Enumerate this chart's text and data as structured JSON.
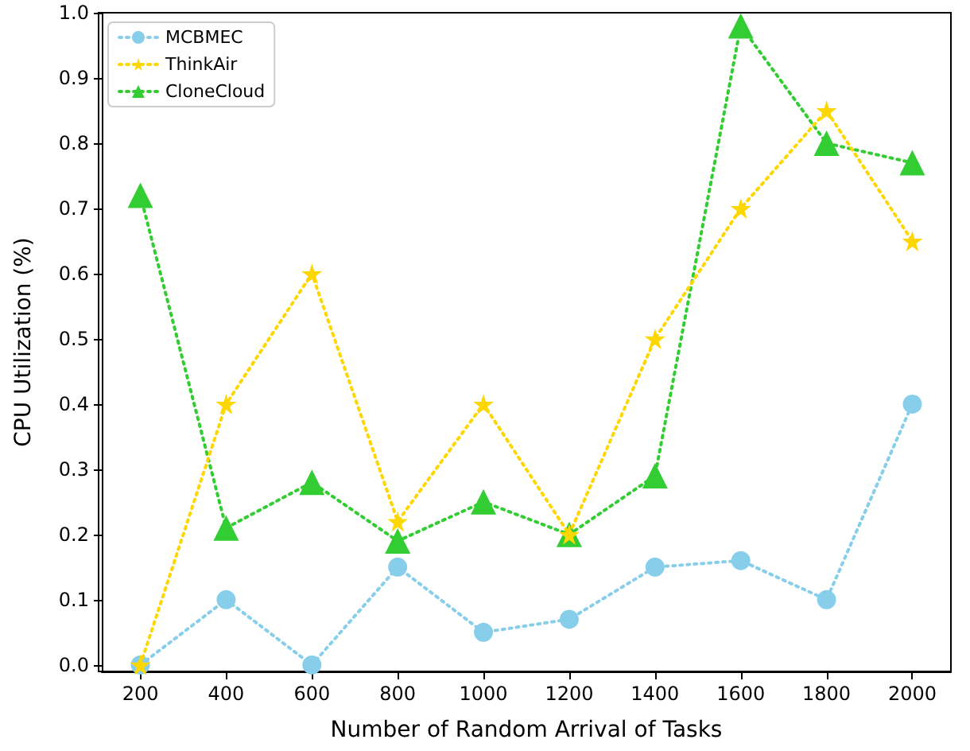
{
  "chart_data": {
    "type": "line",
    "xlabel": "Number of Random Arrival of Tasks",
    "ylabel": "CPU Utilization (%)",
    "x": [
      200,
      400,
      600,
      800,
      1000,
      1200,
      1400,
      1600,
      1800,
      2000
    ],
    "series": [
      {
        "name": "MCBMEC",
        "color": "#87ceeb",
        "marker": "circle",
        "values": [
          0.0,
          0.1,
          0.0,
          0.15,
          0.05,
          0.07,
          0.15,
          0.16,
          0.1,
          0.4
        ]
      },
      {
        "name": "ThinkAir",
        "color": "#ffd700",
        "marker": "star",
        "values": [
          0.0,
          0.4,
          0.6,
          0.22,
          0.4,
          0.2,
          0.5,
          0.7,
          0.85,
          0.65
        ]
      },
      {
        "name": "CloneCloud",
        "color": "#32cd32",
        "marker": "triangle",
        "values": [
          0.72,
          0.21,
          0.28,
          0.19,
          0.25,
          0.2,
          0.29,
          0.98,
          0.8,
          0.77
        ]
      }
    ],
    "xlim": [
      110,
      2090
    ],
    "xticks": [
      200,
      400,
      600,
      800,
      1000,
      1200,
      1400,
      1600,
      1800,
      2000
    ],
    "ylim": [
      -0.01,
      1.0
    ],
    "yticks": [
      {
        "value": 0,
        "label": "0.0"
      },
      0.1,
      0.2,
      0.3,
      0.4,
      0.5,
      0.6,
      0.7,
      0.8,
      0.9,
      {
        "value": 1,
        "label": "1.0"
      }
    ],
    "line_style": "dotted",
    "legend": "top left",
    "grid": false
  }
}
